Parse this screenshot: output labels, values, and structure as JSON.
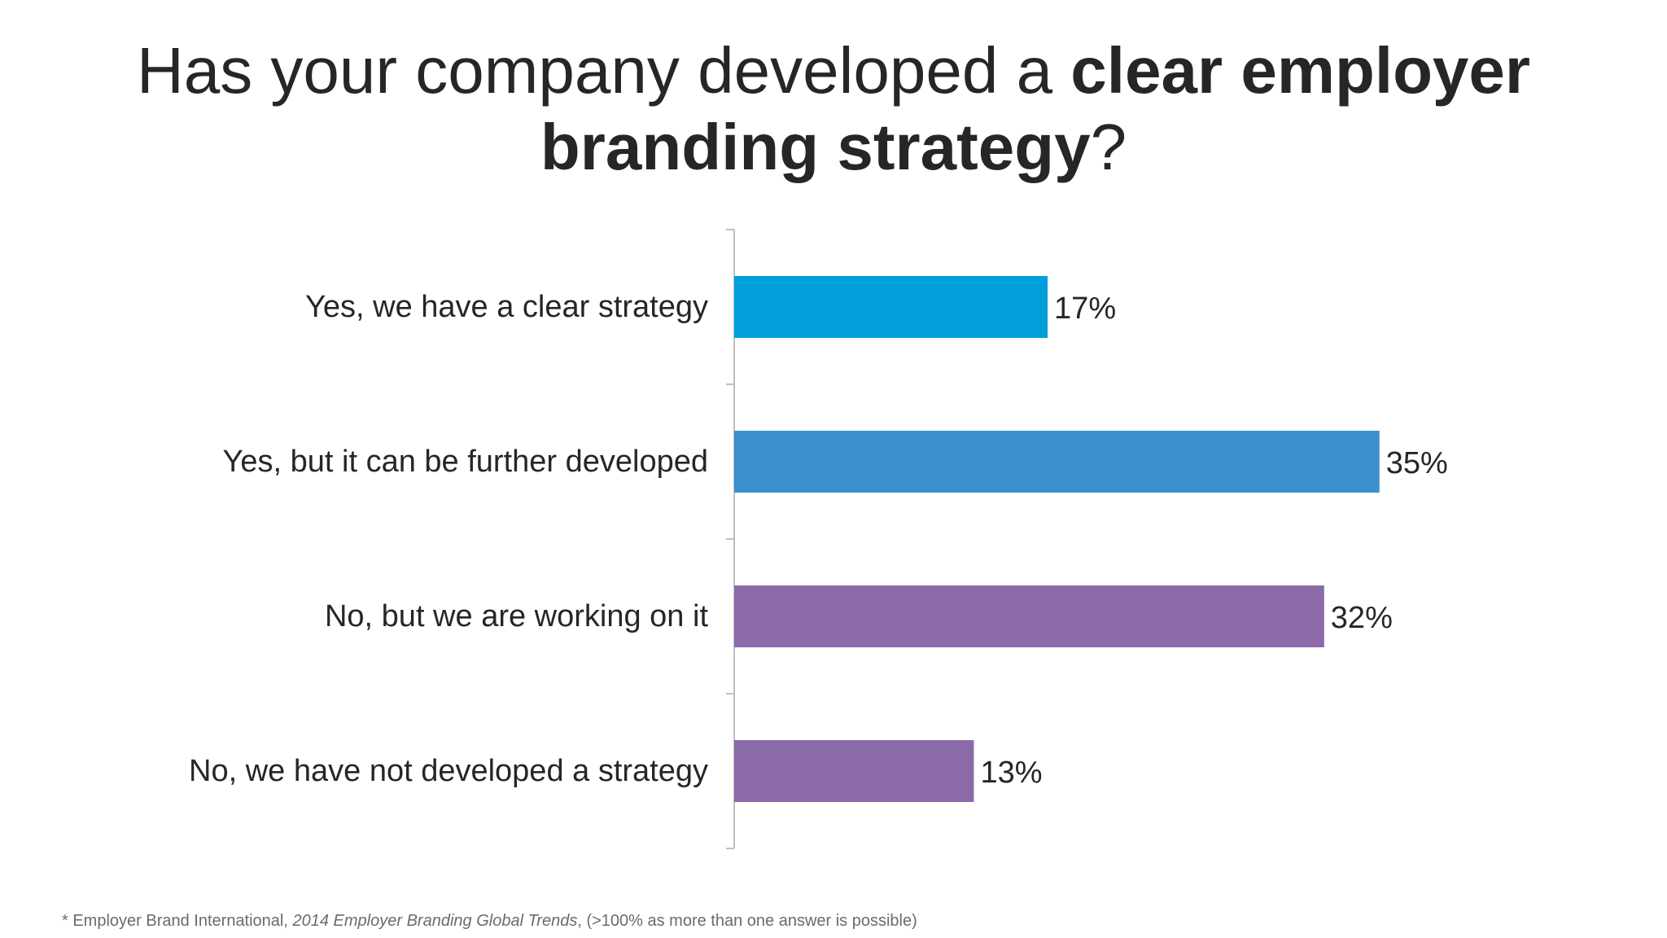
{
  "title": {
    "part1": "Has your company developed a ",
    "bold1": "clear employer",
    "bold2": "branding strategy",
    "end": "?"
  },
  "chart_data": {
    "type": "bar",
    "orientation": "horizontal",
    "title": "Has your company developed a clear employer branding strategy?",
    "categories": [
      "Yes, we have a clear strategy",
      "Yes, but it can be further developed",
      "No, but we are working on it",
      "No, we have not developed a strategy"
    ],
    "values": [
      17,
      35,
      32,
      13
    ],
    "data_labels": [
      "17%",
      "35%",
      "32%",
      "13%"
    ],
    "colors": [
      "#009fdc",
      "#3a8fcf",
      "#8b6aa9",
      "#8b6aa9"
    ],
    "xlim": [
      0,
      40
    ],
    "grid": false,
    "legend": "none",
    "xlabel": "",
    "ylabel": ""
  },
  "footnote": {
    "prefix": "* Employer Brand International, ",
    "italic": "2014 Employer Branding Global Trends",
    "suffix": ", (>100% as more than one answer is possible)"
  }
}
